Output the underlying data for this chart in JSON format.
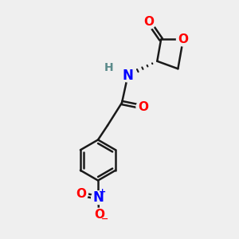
{
  "bg_color": "#efefef",
  "bond_color": "#1a1a1a",
  "bond_lw": 1.8,
  "atom_colors": {
    "O": "#ff0000",
    "N": "#0000ff",
    "H": "#5a8a8a",
    "C": "#1a1a1a"
  },
  "font_size_atom": 11,
  "font_size_charge": 8
}
